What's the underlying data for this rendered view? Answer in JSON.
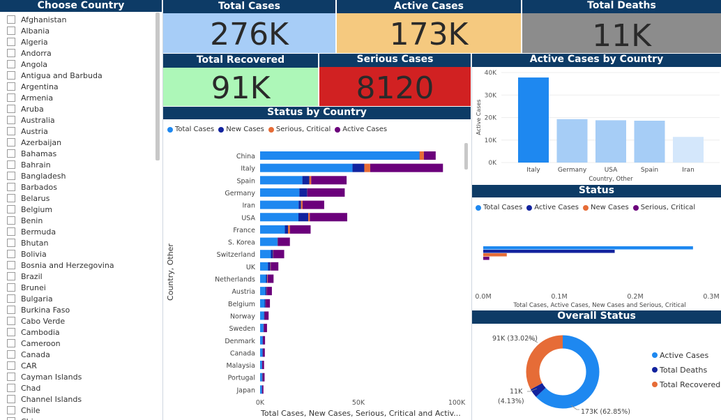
{
  "country_panel": {
    "title": "Choose Country",
    "countries": [
      "Afghanistan",
      "Albania",
      "Algeria",
      "Andorra",
      "Angola",
      "Antigua and Barbuda",
      "Argentina",
      "Armenia",
      "Aruba",
      "Australia",
      "Austria",
      "Azerbaijan",
      "Bahamas",
      "Bahrain",
      "Bangladesh",
      "Barbados",
      "Belarus",
      "Belgium",
      "Benin",
      "Bermuda",
      "Bhutan",
      "Bolivia",
      "Bosnia and Herzegovina",
      "Brazil",
      "Brunei",
      "Bulgaria",
      "Burkina Faso",
      "Cabo Verde",
      "Cambodia",
      "Cameroon",
      "Canada",
      "CAR",
      "Cayman Islands",
      "Chad",
      "Channel Islands",
      "Chile",
      "Chi..."
    ]
  },
  "cards": {
    "total_cases": {
      "title": "Total Cases",
      "value": "276K",
      "color": "#a7cdf7"
    },
    "active_cases": {
      "title": "Active Cases",
      "value": "173K",
      "color": "#f5c97f"
    },
    "total_deaths": {
      "title": "Total Deaths",
      "value": "11K",
      "color": "#8c8c8c"
    },
    "total_recovered": {
      "title": "Total Recovered",
      "value": "91K",
      "color": "#adf7b8"
    },
    "serious_cases": {
      "title": "Serious Cases",
      "value": "8120",
      "color": "#d12122"
    }
  },
  "colors": {
    "header": "#0d3b66",
    "total_cases": "#1e88f0",
    "new_cases": "#12239e",
    "serious": "#e66c37",
    "active": "#6b007b"
  },
  "status_by_country": {
    "title": "Status by Country",
    "legend": [
      "Total Cases",
      "New Cases",
      "Serious, Critical",
      "Active Cases"
    ],
    "y_axis_label": "Country, Other",
    "x_axis_label": "Total Cases, New Cases, Serious, Critical and Activ...",
    "x_ticks": [
      "0K",
      "50K",
      "100K"
    ]
  },
  "active_by_country": {
    "title": "Active Cases by Country",
    "y_axis_label": "Active Cases",
    "x_axis_label": "Country, Other",
    "y_ticks": [
      "0K",
      "10K",
      "20K",
      "30K",
      "40K"
    ]
  },
  "status_panel": {
    "title": "Status",
    "legend": [
      "Total Cases",
      "Active Cases",
      "New Cases",
      "Serious, Critical"
    ],
    "x_axis_label": "Total Cases, Active Cases, New Cases and Serious, Critical",
    "x_ticks": [
      "0.0M",
      "0.1M",
      "0.2M",
      "0.3M"
    ]
  },
  "overall_status": {
    "title": "Overall Status",
    "legend": [
      "Active Cases",
      "Total Deaths",
      "Total Recovered"
    ],
    "labels": [
      "91K (33.02%)",
      "11K",
      "(4.13%)",
      "173K (62.85%)"
    ]
  },
  "chart_data": [
    {
      "type": "bar",
      "orientation": "horizontal-stacked",
      "title": "Status by Country",
      "xlabel": "Total Cases, New Cases, Serious, Critical and Activ...",
      "ylabel": "Country, Other",
      "xlim": [
        0,
        100000
      ],
      "categories": [
        "China",
        "Italy",
        "Spain",
        "Germany",
        "Iran",
        "USA",
        "France",
        "S. Korea",
        "Switzerland",
        "UK",
        "Netherlands",
        "Austria",
        "Belgium",
        "Norway",
        "Sweden",
        "Denmark",
        "Canada",
        "Malaysia",
        "Portugal",
        "Japan"
      ],
      "series": [
        {
          "name": "Total Cases",
          "values": [
            81000,
            47000,
            21500,
            20000,
            19600,
            19500,
            12600,
            8800,
            5500,
            4000,
            3000,
            2700,
            2300,
            2000,
            1700,
            1300,
            1200,
            1000,
            1000,
            950
          ]
        },
        {
          "name": "New Cases",
          "values": [
            100,
            6000,
            3500,
            4000,
            1200,
            5000,
            1600,
            300,
            1100,
            1200,
            600,
            600,
            500,
            300,
            200,
            100,
            200,
            100,
            300,
            100
          ]
        },
        {
          "name": "Serious, Critical",
          "values": [
            2200,
            3000,
            1000,
            50,
            800,
            800,
            1000,
            60,
            150,
            200,
            250,
            100,
            100,
            40,
            20,
            20,
            10,
            20,
            80,
            50
          ]
        },
        {
          "name": "Active Cases",
          "values": [
            6000,
            37000,
            18000,
            19000,
            11000,
            19000,
            10500,
            6000,
            5500,
            3900,
            3000,
            2600,
            2100,
            2000,
            1600,
            1100,
            1000,
            900,
            900,
            600
          ]
        }
      ]
    },
    {
      "type": "bar",
      "title": "Active Cases by Country",
      "xlabel": "Country, Other",
      "ylabel": "Active Cases",
      "ylim": [
        0,
        40000
      ],
      "categories": [
        "Italy",
        "Germany",
        "USA",
        "Spain",
        "Iran"
      ],
      "values": [
        37800,
        19300,
        18800,
        18600,
        11400
      ],
      "highlight_index": 0
    },
    {
      "type": "bar",
      "orientation": "horizontal",
      "title": "Status",
      "xlabel": "Total Cases, Active Cases, New Cases and Serious, Critical",
      "xlim": [
        0,
        0.3
      ],
      "categories": [
        "Total Cases",
        "Active Cases",
        "New Cases",
        "Serious, Critical"
      ],
      "values": [
        0.276,
        0.173,
        0.031,
        0.008
      ]
    },
    {
      "type": "pie",
      "title": "Overall Status",
      "categories": [
        "Active Cases",
        "Total Deaths",
        "Total Recovered"
      ],
      "values": [
        173000,
        11000,
        91000
      ],
      "percents": [
        62.85,
        4.13,
        33.02
      ]
    }
  ]
}
